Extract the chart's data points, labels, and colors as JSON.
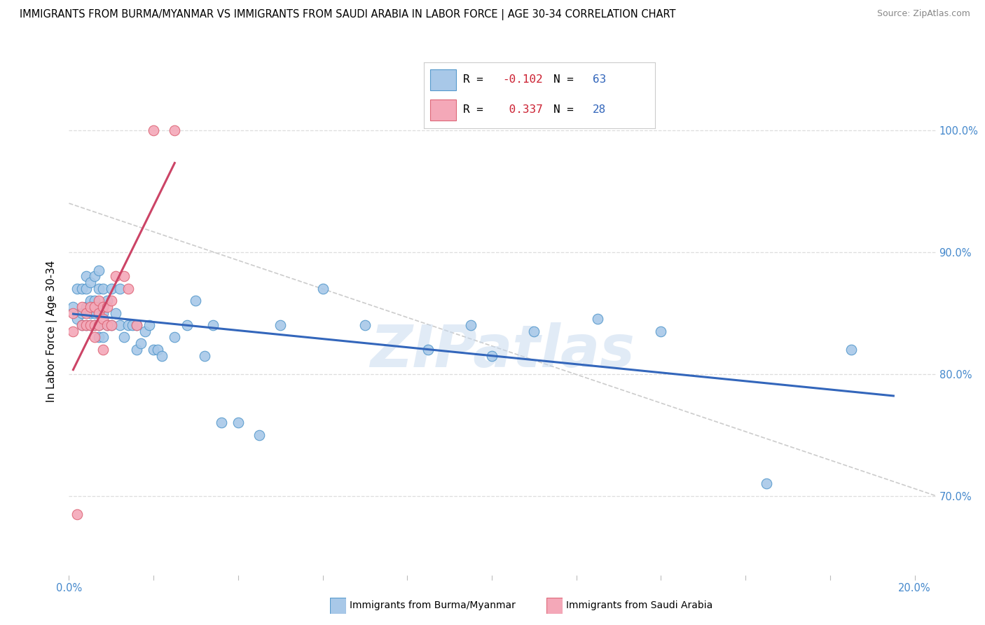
{
  "title": "IMMIGRANTS FROM BURMA/MYANMAR VS IMMIGRANTS FROM SAUDI ARABIA IN LABOR FORCE | AGE 30-34 CORRELATION CHART",
  "source": "Source: ZipAtlas.com",
  "ylabel": "In Labor Force | Age 30-34",
  "xlim": [
    0.0,
    0.205
  ],
  "ylim": [
    0.635,
    1.035
  ],
  "yticks": [
    0.7,
    0.8,
    0.9,
    1.0
  ],
  "ytick_labels": [
    "70.0%",
    "80.0%",
    "90.0%",
    "100.0%"
  ],
  "xticks": [
    0.0,
    0.02,
    0.04,
    0.06,
    0.08,
    0.1,
    0.12,
    0.14,
    0.16,
    0.18,
    0.2
  ],
  "xtick_labels": [
    "0.0%",
    "",
    "",
    "",
    "",
    "",
    "",
    "",
    "",
    "",
    "20.0%"
  ],
  "watermark": "ZIPatlas",
  "blue_R": -0.102,
  "blue_N": 63,
  "pink_R": 0.337,
  "pink_N": 28,
  "blue_color": "#a8c8e8",
  "pink_color": "#f4a8b8",
  "blue_edge_color": "#5599cc",
  "pink_edge_color": "#dd6677",
  "blue_line_color": "#3366bb",
  "pink_line_color": "#cc4466",
  "blue_points_x": [
    0.001,
    0.002,
    0.002,
    0.003,
    0.003,
    0.003,
    0.004,
    0.004,
    0.004,
    0.004,
    0.005,
    0.005,
    0.005,
    0.005,
    0.006,
    0.006,
    0.006,
    0.006,
    0.007,
    0.007,
    0.007,
    0.007,
    0.007,
    0.008,
    0.008,
    0.008,
    0.009,
    0.009,
    0.01,
    0.01,
    0.011,
    0.012,
    0.012,
    0.013,
    0.014,
    0.015,
    0.016,
    0.016,
    0.017,
    0.018,
    0.019,
    0.02,
    0.021,
    0.022,
    0.025,
    0.028,
    0.03,
    0.032,
    0.034,
    0.036,
    0.04,
    0.045,
    0.05,
    0.06,
    0.07,
    0.085,
    0.095,
    0.1,
    0.11,
    0.125,
    0.14,
    0.165,
    0.185
  ],
  "blue_points_y": [
    0.855,
    0.845,
    0.87,
    0.84,
    0.85,
    0.87,
    0.84,
    0.855,
    0.87,
    0.88,
    0.84,
    0.85,
    0.86,
    0.875,
    0.84,
    0.85,
    0.86,
    0.88,
    0.83,
    0.84,
    0.855,
    0.87,
    0.885,
    0.83,
    0.85,
    0.87,
    0.84,
    0.86,
    0.84,
    0.87,
    0.85,
    0.84,
    0.87,
    0.83,
    0.84,
    0.84,
    0.82,
    0.84,
    0.825,
    0.835,
    0.84,
    0.82,
    0.82,
    0.815,
    0.83,
    0.84,
    0.86,
    0.815,
    0.84,
    0.76,
    0.76,
    0.75,
    0.84,
    0.87,
    0.84,
    0.82,
    0.84,
    0.815,
    0.835,
    0.845,
    0.835,
    0.71,
    0.82
  ],
  "pink_points_x": [
    0.001,
    0.001,
    0.002,
    0.003,
    0.003,
    0.004,
    0.004,
    0.005,
    0.005,
    0.006,
    0.006,
    0.006,
    0.007,
    0.007,
    0.007,
    0.008,
    0.008,
    0.008,
    0.009,
    0.009,
    0.01,
    0.01,
    0.011,
    0.013,
    0.014,
    0.016,
    0.02,
    0.025
  ],
  "pink_points_y": [
    0.835,
    0.85,
    0.685,
    0.84,
    0.855,
    0.84,
    0.85,
    0.84,
    0.855,
    0.83,
    0.84,
    0.855,
    0.84,
    0.85,
    0.86,
    0.82,
    0.845,
    0.855,
    0.84,
    0.855,
    0.84,
    0.86,
    0.88,
    0.88,
    0.87,
    0.84,
    1.0,
    1.0
  ],
  "diag_line": {
    "x": [
      0.0,
      0.205
    ],
    "y": [
      0.94,
      0.7
    ]
  },
  "blue_trend_x": [
    0.001,
    0.195
  ],
  "pink_trend_x": [
    0.001,
    0.025
  ]
}
